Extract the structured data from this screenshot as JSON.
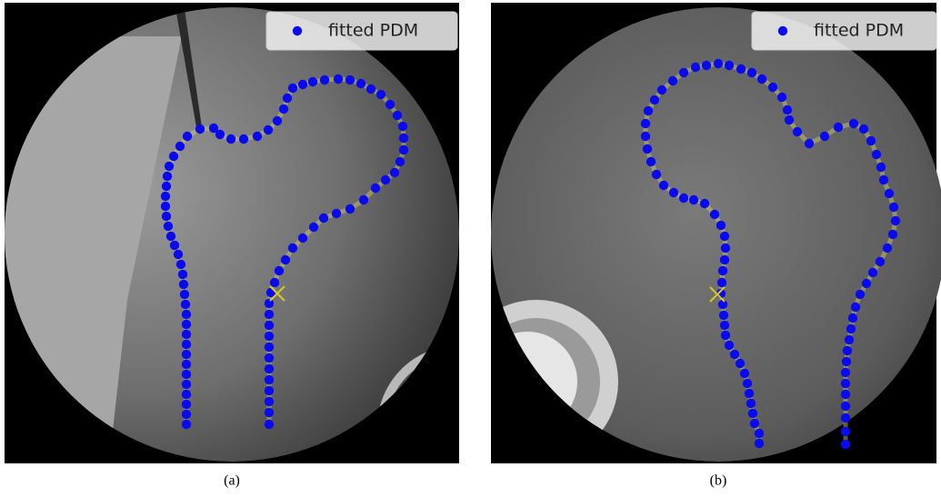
{
  "panels": [
    {
      "legend": "fitted PDM",
      "caption": "(a)"
    },
    {
      "legend": "fitted PDM",
      "caption": "(b)"
    }
  ]
}
